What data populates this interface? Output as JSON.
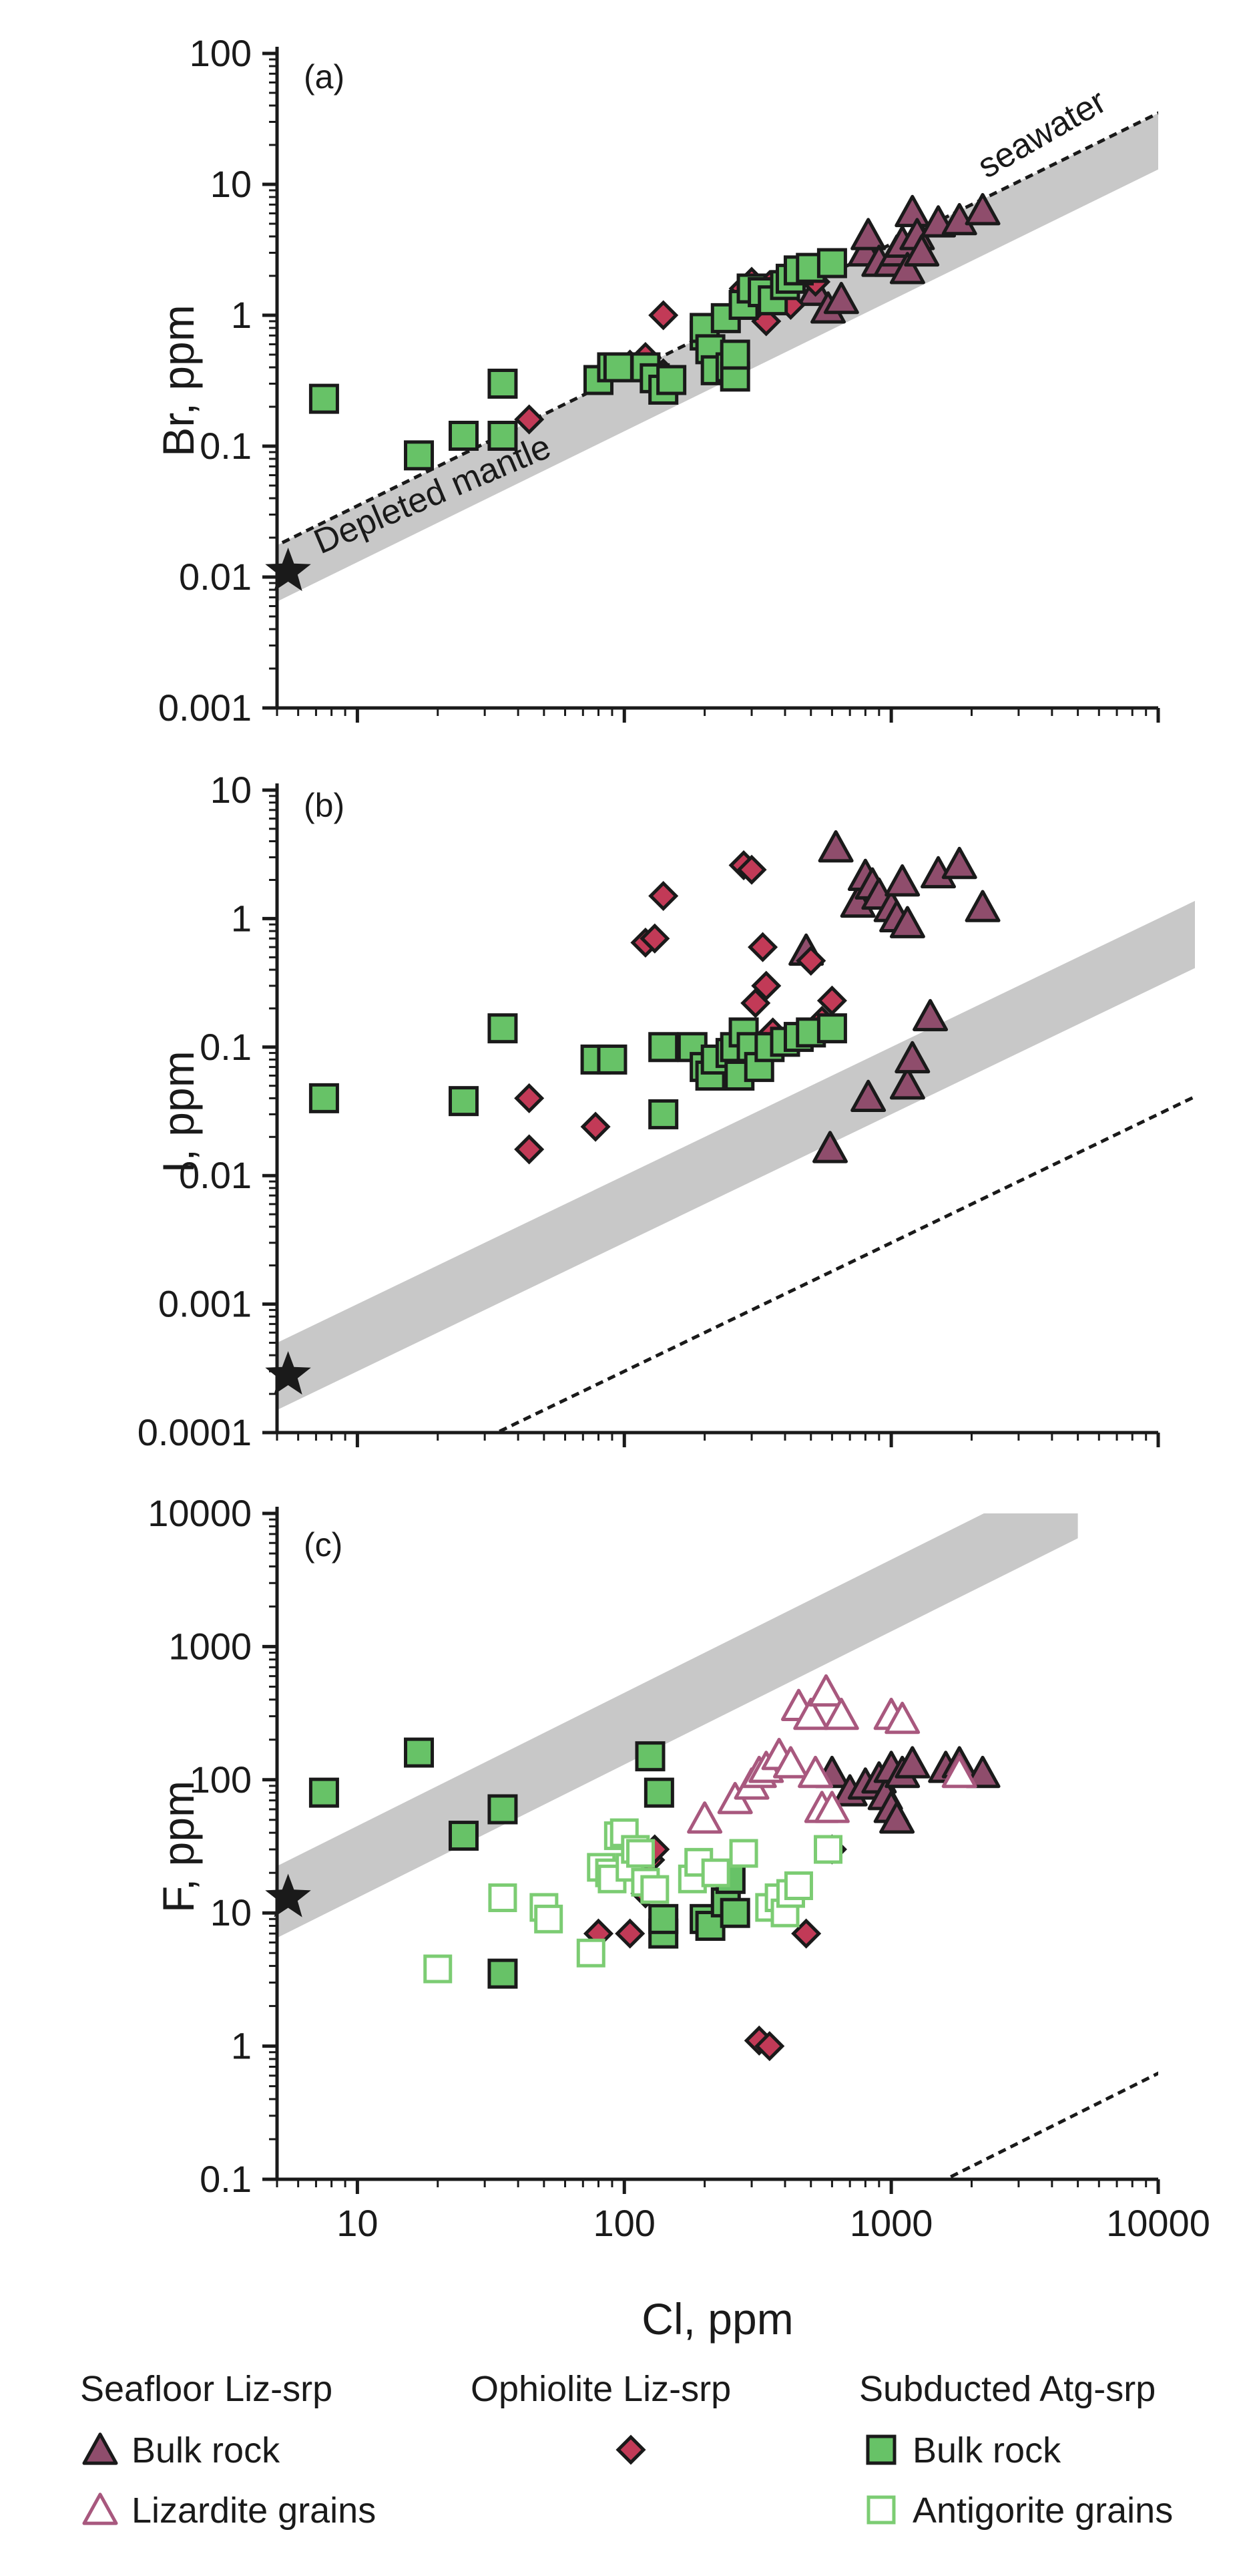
{
  "colors": {
    "seafloor_fill": "#8f4d6c",
    "lizardite_stroke": "#a8587e",
    "ophiolite_fill": "#c23a57",
    "bulk_fill": "#67c267",
    "antigorite_stroke": "#7ccc73",
    "band": "#c8c8c8",
    "ink": "#1a1a1a"
  },
  "legend": {
    "groups": [
      {
        "title": "Seafloor Liz-srp",
        "items": [
          {
            "label": "Bulk rock",
            "marker": "filled-triangle"
          },
          {
            "label": "Lizardite grains",
            "marker": "open-triangle"
          }
        ]
      },
      {
        "title": "Ophiolite Liz-srp",
        "items": [
          {
            "label": "",
            "marker": "filled-diamond"
          }
        ]
      },
      {
        "title": "Subducted Atg-srp",
        "items": [
          {
            "label": "Bulk rock",
            "marker": "filled-square"
          },
          {
            "label": "Antigorite grains",
            "marker": "open-square"
          }
        ]
      }
    ]
  },
  "chart_data": [
    {
      "panel": "(a)",
      "type": "scatter",
      "xscale": "log",
      "yscale": "log",
      "xlim": [
        5,
        10000
      ],
      "ylim": [
        0.001,
        100
      ],
      "xlabel": "",
      "ylabel": "Br, ppm",
      "yticks": [
        "100",
        "10",
        "1",
        "0.1",
        "0.01",
        "0.001"
      ],
      "yticks_values": [
        100,
        10,
        1,
        0.1,
        0.01,
        0.001
      ],
      "annotations": {
        "line_label": "seawater",
        "band_label": "Depleted mantle"
      },
      "reference_line": {
        "name": "seawater",
        "ratio": 0.0035
      },
      "band": {
        "name": "Depleted mantle",
        "ratio_low": 0.0013,
        "ratio_high": 0.0035,
        "x_end": 10000
      },
      "star": {
        "x": 5.5,
        "y": 0.011
      },
      "series": [
        {
          "name": "Seafloor Liz-srp bulk rock",
          "marker": "filled-triangle",
          "points": [
            [
              520,
              1.5
            ],
            [
              580,
              1.1
            ],
            [
              650,
              1.3
            ],
            [
              800,
              3
            ],
            [
              820,
              4
            ],
            [
              900,
              2.5
            ],
            [
              1000,
              2.5
            ],
            [
              1050,
              3
            ],
            [
              1100,
              3.5
            ],
            [
              1150,
              2.2
            ],
            [
              1200,
              6
            ],
            [
              1250,
              4
            ],
            [
              1300,
              3
            ],
            [
              1500,
              5
            ],
            [
              1800,
              5.2
            ],
            [
              2200,
              6.2
            ]
          ]
        },
        {
          "name": "Ophiolite Liz-srp",
          "marker": "filled-diamond",
          "points": [
            [
              44,
              0.16
            ],
            [
              88,
              0.4
            ],
            [
              105,
              0.42
            ],
            [
              120,
              0.48
            ],
            [
              140,
              0.36
            ],
            [
              140,
              1.0
            ],
            [
              280,
              1.6
            ],
            [
              300,
              1.8
            ],
            [
              320,
              1.1
            ],
            [
              340,
              0.9
            ],
            [
              350,
              1.7
            ],
            [
              420,
              1.2
            ],
            [
              520,
              1.8
            ]
          ]
        },
        {
          "name": "Subducted Atg-srp bulk rock",
          "marker": "filled-square",
          "points": [
            [
              7.5,
              0.23
            ],
            [
              17,
              0.085
            ],
            [
              25,
              0.12
            ],
            [
              35,
              0.12
            ],
            [
              35,
              0.3
            ],
            [
              80,
              0.32
            ],
            [
              90,
              0.4
            ],
            [
              95,
              0.4
            ],
            [
              120,
              0.4
            ],
            [
              130,
              0.33
            ],
            [
              140,
              0.27
            ],
            [
              150,
              0.32
            ],
            [
              200,
              0.7
            ],
            [
              200,
              0.8
            ],
            [
              210,
              0.55
            ],
            [
              220,
              0.38
            ],
            [
              240,
              0.95
            ],
            [
              250,
              0.4
            ],
            [
              260,
              0.34
            ],
            [
              260,
              0.5
            ],
            [
              280,
              1.2
            ],
            [
              300,
              1.6
            ],
            [
              330,
              1.5
            ],
            [
              360,
              1.3
            ],
            [
              400,
              1.7
            ],
            [
              420,
              1.9
            ],
            [
              450,
              2.2
            ],
            [
              500,
              2.3
            ],
            [
              600,
              2.5
            ]
          ]
        }
      ]
    },
    {
      "panel": "(b)",
      "type": "scatter",
      "xscale": "log",
      "yscale": "log",
      "xlim": [
        5,
        10000
      ],
      "ylim": [
        0.0001,
        10
      ],
      "xlabel": "",
      "ylabel": "I, ppm",
      "yticks": [
        "10",
        "1",
        "0.1",
        "0.01",
        "0.001",
        "0.0001"
      ],
      "yticks_values": [
        10,
        1,
        0.1,
        0.01,
        0.001,
        0.0001
      ],
      "reference_line": {
        "name": "seawater",
        "ratio": 3e-06
      },
      "band": {
        "name": "Depleted mantle",
        "ratio_low": 3e-05,
        "ratio_high": 0.0001,
        "x_end": 15000
      },
      "star": {
        "x": 5.5,
        "y": 0.00028
      },
      "series": [
        {
          "name": "Seafloor Liz-srp bulk rock",
          "marker": "filled-triangle",
          "points": [
            [
              480,
              0.55
            ],
            [
              590,
              0.016
            ],
            [
              620,
              3.5
            ],
            [
              750,
              1.3
            ],
            [
              800,
              2.1
            ],
            [
              850,
              1.8
            ],
            [
              820,
              0.04
            ],
            [
              900,
              1.5
            ],
            [
              1000,
              1.2
            ],
            [
              1050,
              1.0
            ],
            [
              1100,
              1.9
            ],
            [
              1150,
              0.05
            ],
            [
              1200,
              0.08
            ],
            [
              1150,
              0.9
            ],
            [
              1400,
              0.17
            ],
            [
              1500,
              2.2
            ],
            [
              1800,
              2.6
            ],
            [
              2200,
              1.2
            ]
          ]
        },
        {
          "name": "Ophiolite Liz-srp",
          "marker": "filled-diamond",
          "points": [
            [
              44,
              0.04
            ],
            [
              44,
              0.016
            ],
            [
              78,
              0.024
            ],
            [
              120,
              0.65
            ],
            [
              130,
              0.7
            ],
            [
              140,
              1.5
            ],
            [
              280,
              2.6
            ],
            [
              300,
              2.4
            ],
            [
              310,
              0.22
            ],
            [
              330,
              0.6
            ],
            [
              340,
              0.3
            ],
            [
              360,
              0.13
            ],
            [
              500,
              0.47
            ],
            [
              550,
              0.16
            ],
            [
              600,
              0.23
            ]
          ]
        },
        {
          "name": "Subducted Atg-srp bulk rock",
          "marker": "filled-square",
          "points": [
            [
              7.5,
              0.04
            ],
            [
              25,
              0.038
            ],
            [
              35,
              0.14
            ],
            [
              78,
              0.08
            ],
            [
              90,
              0.08
            ],
            [
              140,
              0.03
            ],
            [
              140,
              0.1
            ],
            [
              180,
              0.1
            ],
            [
              200,
              0.07
            ],
            [
              210,
              0.06
            ],
            [
              220,
              0.08
            ],
            [
              250,
              0.09
            ],
            [
              260,
              0.1
            ],
            [
              270,
              0.06
            ],
            [
              280,
              0.13
            ],
            [
              300,
              0.1
            ],
            [
              320,
              0.07
            ],
            [
              350,
              0.1
            ],
            [
              400,
              0.11
            ],
            [
              450,
              0.12
            ],
            [
              500,
              0.13
            ],
            [
              600,
              0.14
            ]
          ]
        }
      ]
    },
    {
      "panel": "(c)",
      "type": "scatter",
      "xscale": "log",
      "yscale": "log",
      "xlim": [
        5,
        10000
      ],
      "ylim": [
        0.1,
        10000
      ],
      "xlabel": "Cl, ppm",
      "ylabel": "F, ppm",
      "xticks": [
        "10",
        "100",
        "1000",
        "10000"
      ],
      "xticks_values": [
        10,
        100,
        1000,
        10000
      ],
      "yticks": [
        "10000",
        "1000",
        "100",
        "10",
        "1",
        "0.1"
      ],
      "yticks_values": [
        10000,
        1000,
        100,
        10,
        1,
        0.1
      ],
      "reference_line": {
        "name": "seawater",
        "ratio": 6.25e-05
      },
      "band": {
        "name": "Depleted mantle",
        "ratio_low": 1.3,
        "ratio_high": 4.5,
        "x_end": 5000
      },
      "star": {
        "x": 5.5,
        "y": 13
      },
      "series": [
        {
          "name": "Seafloor Liz-srp bulk rock",
          "marker": "filled-triangle",
          "points": [
            [
              600,
              110
            ],
            [
              700,
              80
            ],
            [
              800,
              90
            ],
            [
              900,
              100
            ],
            [
              950,
              75
            ],
            [
              1000,
              60
            ],
            [
              1000,
              120
            ],
            [
              1050,
              50
            ],
            [
              1100,
              110
            ],
            [
              1200,
              130
            ],
            [
              1600,
              120
            ],
            [
              1800,
              130
            ],
            [
              2200,
              110
            ]
          ]
        },
        {
          "name": "Seafloor Liz-srp lizardite grains",
          "marker": "open-triangle",
          "points": [
            [
              200,
              50
            ],
            [
              260,
              70
            ],
            [
              300,
              90
            ],
            [
              320,
              110
            ],
            [
              340,
              120
            ],
            [
              380,
              150
            ],
            [
              420,
              130
            ],
            [
              450,
              350
            ],
            [
              500,
              300
            ],
            [
              520,
              110
            ],
            [
              550,
              60
            ],
            [
              570,
              450
            ],
            [
              600,
              60
            ],
            [
              650,
              300
            ],
            [
              1000,
              300
            ],
            [
              1100,
              280
            ],
            [
              1800,
              110
            ]
          ]
        },
        {
          "name": "Ophiolite Liz-srp",
          "marker": "filled-diamond",
          "points": [
            [
              80,
              7
            ],
            [
              105,
              7
            ],
            [
              120,
              14
            ],
            [
              125,
              25
            ],
            [
              130,
              30
            ],
            [
              320,
              1.1
            ],
            [
              350,
              1.0
            ],
            [
              480,
              7
            ],
            [
              600,
              30
            ]
          ]
        },
        {
          "name": "Subducted Atg-srp bulk rock",
          "marker": "filled-square",
          "points": [
            [
              7.5,
              80
            ],
            [
              17,
              160
            ],
            [
              25,
              38
            ],
            [
              35,
              3.5
            ],
            [
              35,
              60
            ],
            [
              125,
              150
            ],
            [
              135,
              80
            ],
            [
              140,
              7
            ],
            [
              140,
              9
            ],
            [
              200,
              9
            ],
            [
              210,
              8
            ],
            [
              240,
              12
            ],
            [
              250,
              18
            ],
            [
              260,
              10
            ]
          ]
        },
        {
          "name": "Subducted Atg-srp antigorite grains",
          "marker": "open-square",
          "points": [
            [
              20,
              3.8
            ],
            [
              35,
              13
            ],
            [
              50,
              11
            ],
            [
              52,
              9
            ],
            [
              75,
              5
            ],
            [
              82,
              22
            ],
            [
              88,
              20
            ],
            [
              90,
              18
            ],
            [
              95,
              38
            ],
            [
              100,
              40
            ],
            [
              105,
              22
            ],
            [
              110,
              30
            ],
            [
              115,
              28
            ],
            [
              120,
              17
            ],
            [
              130,
              15
            ],
            [
              180,
              18
            ],
            [
              190,
              24
            ],
            [
              220,
              20
            ],
            [
              280,
              28
            ],
            [
              350,
              11
            ],
            [
              380,
              13
            ],
            [
              400,
              10
            ],
            [
              420,
              14
            ],
            [
              450,
              16
            ],
            [
              580,
              30
            ]
          ]
        }
      ]
    }
  ]
}
